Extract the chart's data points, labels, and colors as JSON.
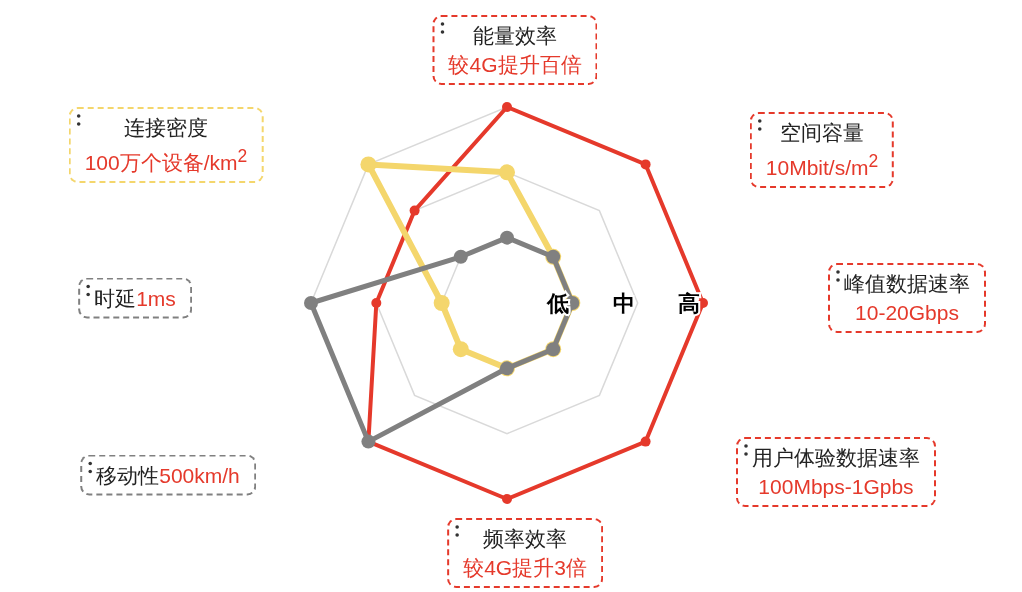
{
  "chart_data": {
    "type": "radar",
    "categories": [
      "能量效率",
      "空间容量",
      "峰值数据速率",
      "用户体验数据速率",
      "频率效率",
      "移动性",
      "时延",
      "连接密度"
    ],
    "annotations": [
      "较4G提升百倍",
      "10Mbit/s/m$^{2}$",
      "10-20Gbps",
      "100Mbps-1Gpbs",
      "较4G提升3倍",
      "500km/h",
      "1ms",
      "100万个设备/km$^{2}$"
    ],
    "series": [
      {
        "color": "#e5392b",
        "values": [
          3,
          3,
          3,
          3,
          3,
          3,
          2,
          2
        ]
      },
      {
        "color": "#f4d66c",
        "values": [
          2,
          1,
          1,
          1,
          1,
          1,
          1,
          3
        ]
      },
      {
        "color": "#808080",
        "values": [
          1,
          1,
          1,
          1,
          1,
          3,
          3,
          1
        ]
      }
    ],
    "ylim": [
      0,
      3
    ],
    "yticks": [
      {
        "value": 1,
        "label": "低"
      },
      {
        "value": 2,
        "label": "中"
      },
      {
        "value": 3,
        "label": "高"
      }
    ],
    "marker": "circle"
  }
}
